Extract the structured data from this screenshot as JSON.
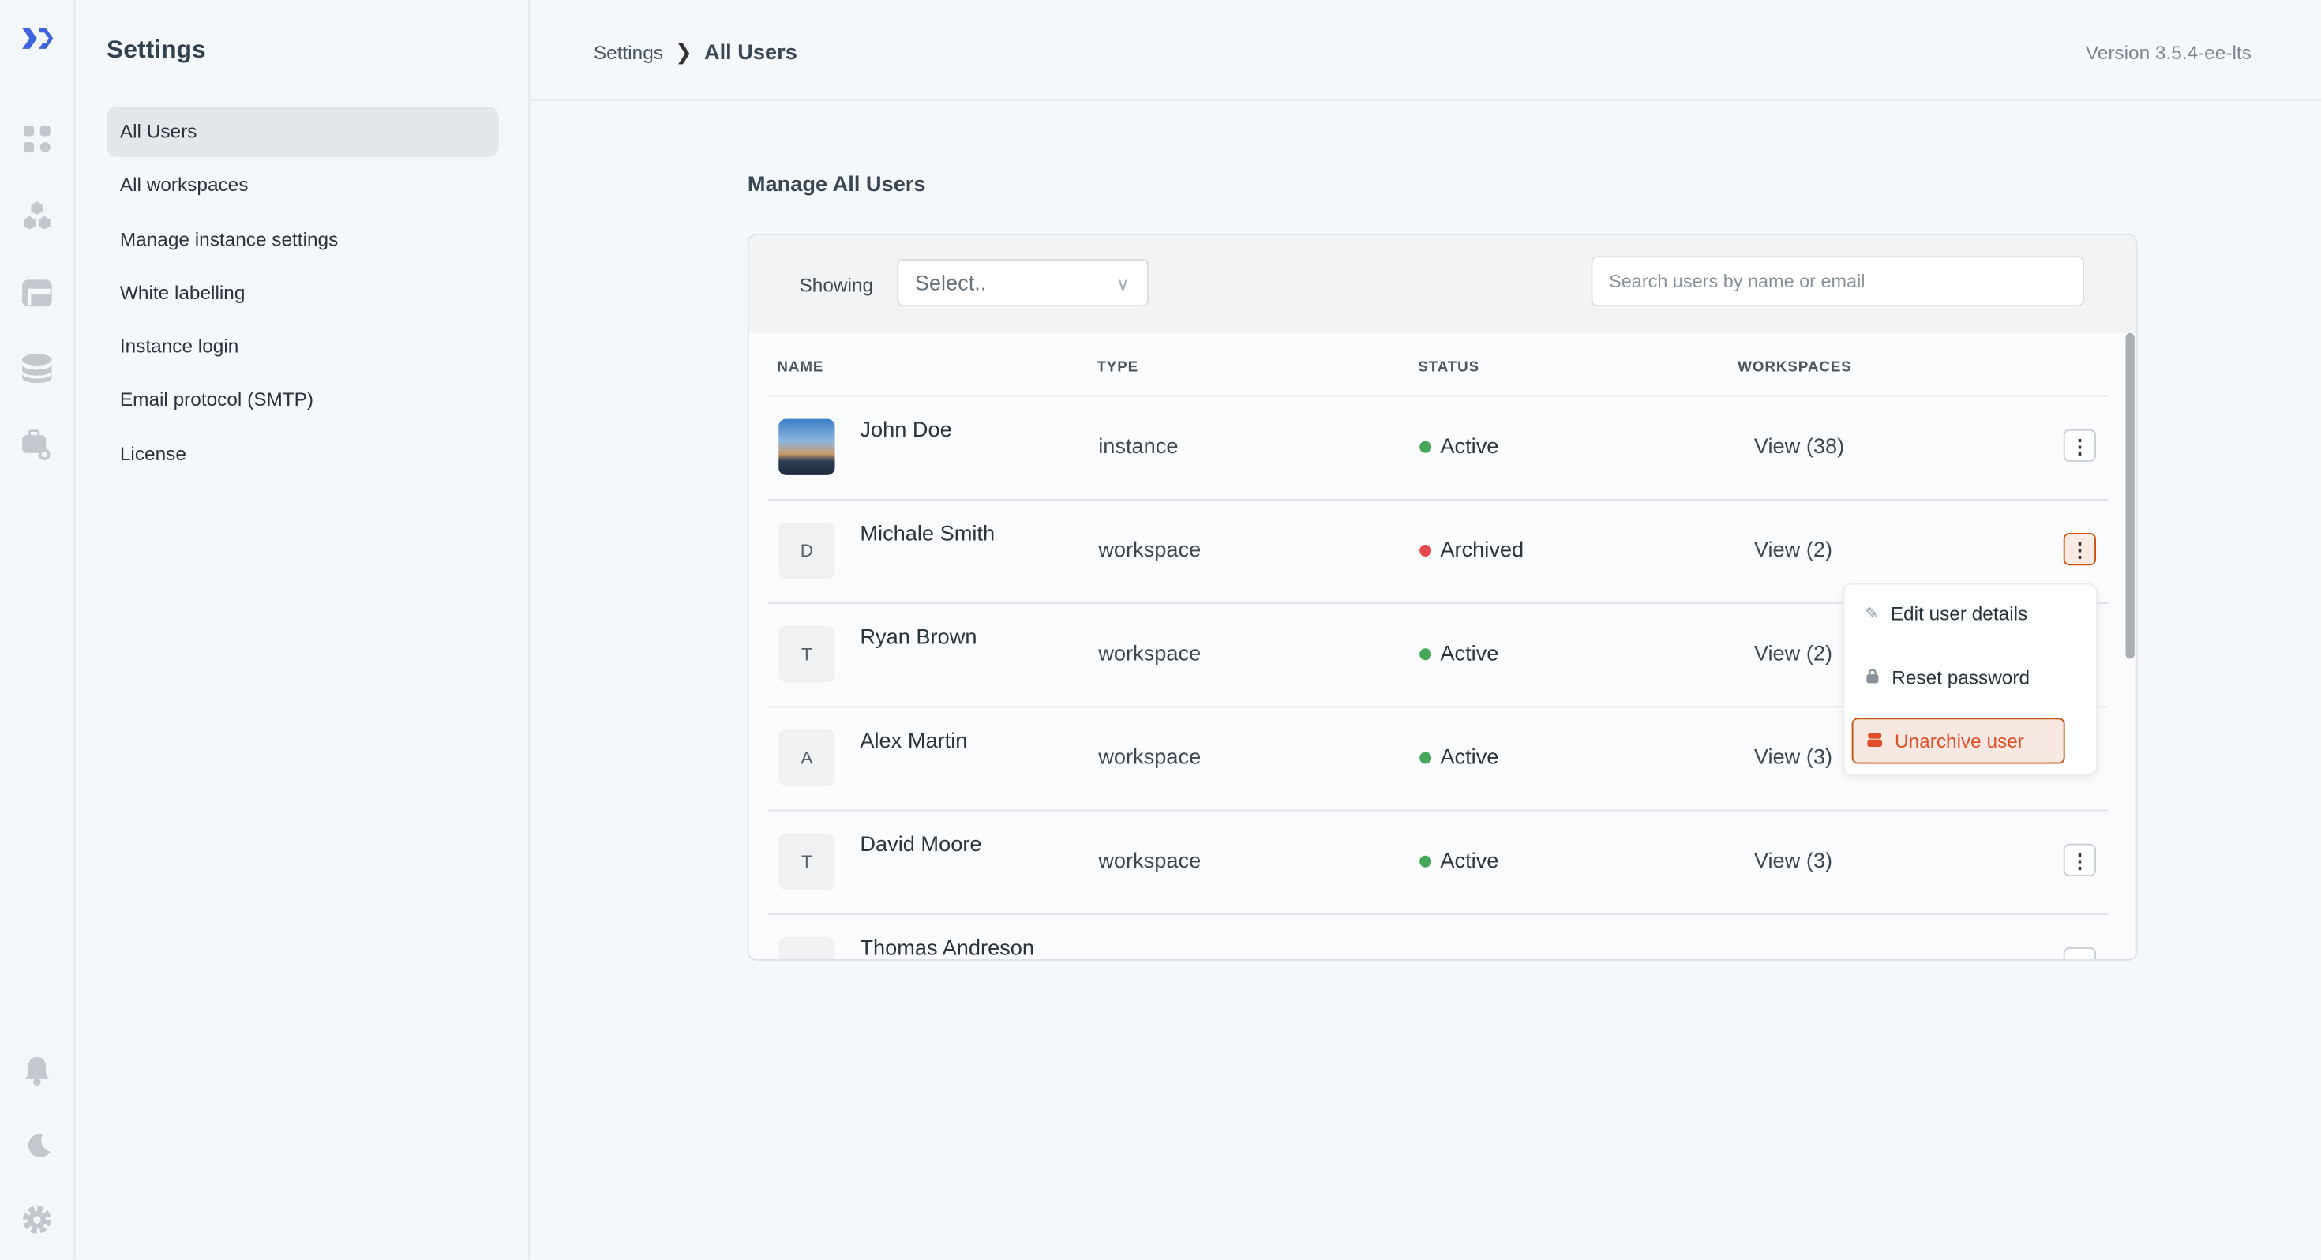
{
  "rail": {
    "icons": [
      "logo-icon",
      "apps-icon",
      "components-icon",
      "table-icon",
      "database-icon",
      "workflow-icon",
      "bell-icon",
      "moon-icon",
      "gear-icon"
    ]
  },
  "sidebar": {
    "title": "Settings",
    "items": [
      {
        "label": "All Users",
        "active": true
      },
      {
        "label": "All workspaces"
      },
      {
        "label": "Manage instance settings"
      },
      {
        "label": "White labelling"
      },
      {
        "label": "Instance login"
      },
      {
        "label": "Email protocol (SMTP)"
      },
      {
        "label": "License"
      }
    ]
  },
  "header": {
    "breadcrumb": [
      "Settings",
      "All Users"
    ],
    "version": "Version 3.5.4-ee-lts"
  },
  "main": {
    "title": "Manage All Users",
    "filter": {
      "label": "Showing",
      "select_value": "Select..",
      "search_placeholder": "Search users by name or email"
    },
    "columns": [
      "NAME",
      "TYPE",
      "STATUS",
      "WORKSPACES"
    ],
    "rows": [
      {
        "avatar": "",
        "name": "John Doe",
        "type": "instance",
        "status": "Active",
        "workspaces": "View (38)"
      },
      {
        "avatar": "D",
        "name": "Michale Smith",
        "type": "workspace",
        "status": "Archived",
        "workspaces": "View (2)"
      },
      {
        "avatar": "T",
        "name": "Ryan Brown",
        "type": "workspace",
        "status": "Active",
        "workspaces": "View (2)"
      },
      {
        "avatar": "A",
        "name": "Alex Martin",
        "type": "workspace",
        "status": "Active",
        "workspaces": "View (3)"
      },
      {
        "avatar": "T",
        "name": "David Moore",
        "type": "workspace",
        "status": "Active",
        "workspaces": "View (3)"
      },
      {
        "avatar": "",
        "name": "Thomas Andreson",
        "type": "",
        "status": "",
        "workspaces": ""
      }
    ],
    "menu": {
      "items": [
        "Edit user details",
        "Reset password",
        "Unarchive user"
      ]
    }
  },
  "colors": {
    "accent": "#3e63dd",
    "active": "#46a758",
    "archived": "#e5484d",
    "danger": "#e0502b",
    "focus": "#c8540f"
  }
}
